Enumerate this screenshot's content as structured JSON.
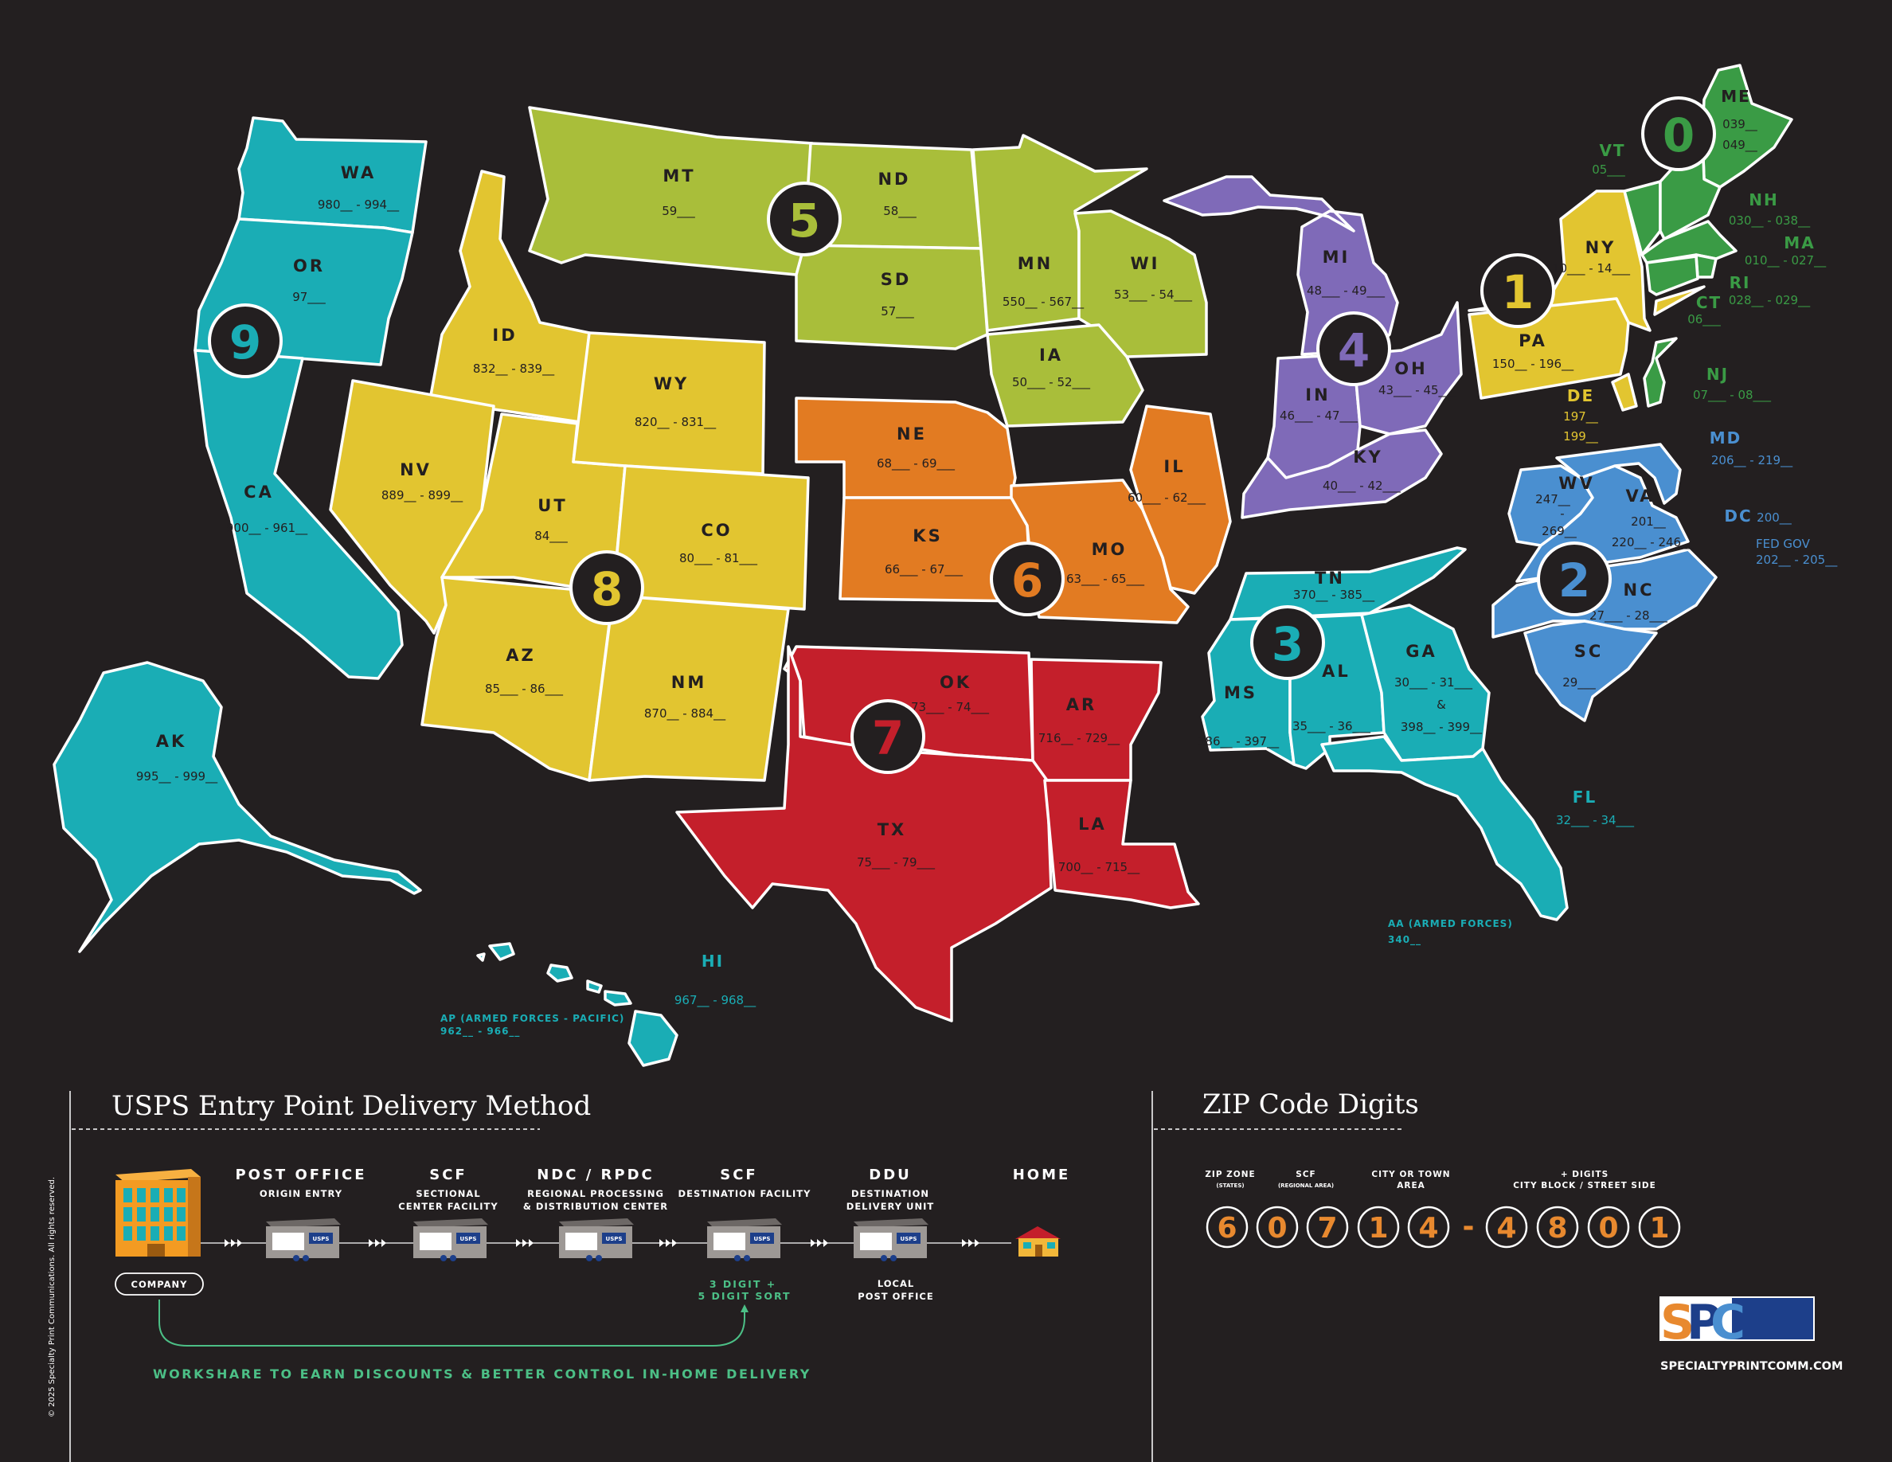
{
  "colors": {
    "background": "#231f20",
    "zone0": "#3a9b45",
    "zone1": "#e2c530",
    "zone2": "#4a8fd0",
    "zone3": "#1aadb5",
    "zone4": "#7f6ab8",
    "zone5": "#a9be3a",
    "zone6": "#e27b22",
    "zone7": "#c41f2b",
    "zone8": "#e2c530",
    "zone9": "#1aadb5",
    "accent_green": "#4cbf86",
    "digit_orange": "#e8892f"
  },
  "zones": {
    "z0": "0",
    "z1": "1",
    "z2": "2",
    "z3": "3",
    "z4": "4",
    "z5": "5",
    "z6": "6",
    "z7": "7",
    "z8": "8",
    "z9": "9"
  },
  "states": {
    "WA": {
      "abbr": "WA",
      "range": "980__ - 994__"
    },
    "OR": {
      "abbr": "OR",
      "range": "97___"
    },
    "CA": {
      "abbr": "CA",
      "range": "900__ - 961__"
    },
    "AK": {
      "abbr": "AK",
      "range": "995__ - 999__"
    },
    "HI": {
      "abbr": "HI",
      "range": "967__ - 968__"
    },
    "ID": {
      "abbr": "ID",
      "range": "832__ - 839__"
    },
    "NV": {
      "abbr": "NV",
      "range": "889__  - 899__"
    },
    "UT": {
      "abbr": "UT",
      "range": "84___"
    },
    "AZ": {
      "abbr": "AZ",
      "range": "85___ - 86___"
    },
    "WY": {
      "abbr": "WY",
      "range": "820__ - 831__"
    },
    "CO": {
      "abbr": "CO",
      "range": "80___ - 81___"
    },
    "NM": {
      "abbr": "NM",
      "range": "870__ - 884__"
    },
    "MT": {
      "abbr": "MT",
      "range": "59___"
    },
    "ND": {
      "abbr": "ND",
      "range": "58___"
    },
    "SD": {
      "abbr": "SD",
      "range": "57___"
    },
    "MN": {
      "abbr": "MN",
      "range": "550__ - 567__"
    },
    "WI": {
      "abbr": "WI",
      "range": "53___ - 54___"
    },
    "IA": {
      "abbr": "IA",
      "range": "50___ - 52___"
    },
    "NE": {
      "abbr": "NE",
      "range": "68___ - 69___"
    },
    "KS": {
      "abbr": "KS",
      "range": "66___ - 67___"
    },
    "MO": {
      "abbr": "MO",
      "range": "63___ - 65___"
    },
    "IL": {
      "abbr": "IL",
      "range": "60___ - 62___"
    },
    "OK": {
      "abbr": "OK",
      "range": "73___ - 74___"
    },
    "AR": {
      "abbr": "AR",
      "range": "716__ - 729__"
    },
    "TX": {
      "abbr": "TX",
      "range": "75___ - 79___"
    },
    "LA": {
      "abbr": "LA",
      "range": "700__ - 715__"
    },
    "MI": {
      "abbr": "MI",
      "range": "48___ - 49___"
    },
    "IN": {
      "abbr": "IN",
      "range": "46___ - 47___"
    },
    "OH": {
      "abbr": "OH",
      "range": "43___ - 45___"
    },
    "KY": {
      "abbr": "KY",
      "range": "40___ - 42___"
    },
    "TN": {
      "abbr": "TN",
      "range": "370__ - 385__"
    },
    "MS": {
      "abbr": "MS",
      "range": "386__ - 397__"
    },
    "AL": {
      "abbr": "AL",
      "range": "35___ - 36___"
    },
    "GA": {
      "abbr": "GA",
      "range1": "30___ - 31___",
      "amp": "&",
      "range2": "398__ - 399__"
    },
    "FL": {
      "abbr": "FL",
      "range": "32___ - 34___"
    },
    "WV": {
      "abbr": "WV",
      "range1": "247__",
      "dash": "-",
      "range2": "269__"
    },
    "VA": {
      "abbr": "VA",
      "range1": "201__",
      "range2": "220__ - 246__"
    },
    "NC": {
      "abbr": "NC",
      "range": "27___ - 28___"
    },
    "SC": {
      "abbr": "SC",
      "range": "29___"
    },
    "NY": {
      "abbr": "NY",
      "range": "10___ - 14___"
    },
    "PA": {
      "abbr": "PA",
      "range": "150__ - 196__"
    },
    "DE": {
      "abbr": "DE",
      "range1": "197__",
      "range2": "199__"
    },
    "MD": {
      "abbr": "MD",
      "range": "206__ - 219__"
    },
    "DC": {
      "abbr": "DC",
      "range": "200__"
    },
    "FEDGOV": {
      "abbr": "FED GOV",
      "range": "202__ - 205__"
    },
    "ME": {
      "abbr": "ME",
      "range1": "039__",
      "range2": "049__"
    },
    "VT": {
      "abbr": "VT",
      "range": "05___"
    },
    "NH": {
      "abbr": "NH",
      "range": "030__ - 038__"
    },
    "MA": {
      "abbr": "MA",
      "range": "010__ - 027__"
    },
    "RI": {
      "abbr": "RI",
      "range": "028__ - 029__"
    },
    "CT": {
      "abbr": "CT",
      "range": "06___"
    },
    "NJ": {
      "abbr": "NJ",
      "range": "07___ - 08___"
    }
  },
  "military": {
    "ap_label": "AP (ARMED FORCES - PACIFIC)",
    "ap_range": "962__ - 966__",
    "aa_label": "AA (ARMED FORCES)",
    "aa_range": "340__"
  },
  "delivery": {
    "title": "USPS Entry Point Delivery Method",
    "company": "COMPANY",
    "steps": [
      {
        "label": "POST OFFICE",
        "sub1": "ORIGIN ENTRY",
        "sub2": ""
      },
      {
        "label": "SCF",
        "sub1": "SECTIONAL",
        "sub2": "CENTER FACILITY"
      },
      {
        "label": "NDC / RPDC",
        "sub1": "REGIONAL PROCESSING",
        "sub2": "& DISTRIBUTION CENTER"
      },
      {
        "label": "SCF",
        "sub1": "DESTINATION FACILITY",
        "sub2": ""
      },
      {
        "label": "DDU",
        "sub1": "DESTINATION",
        "sub2": "DELIVERY UNIT"
      },
      {
        "label": "HOME",
        "sub1": "",
        "sub2": ""
      }
    ],
    "truck_text": "USPS",
    "sort_note1": "3 DIGIT +",
    "sort_note2": "5 DIGIT SORT",
    "local1": "LOCAL",
    "local2": "POST OFFICE",
    "workshare": "WORKSHARE TO EARN DISCOUNTS & BETTER CONTROL IN-HOME DELIVERY"
  },
  "zip": {
    "title": "ZIP Code Digits",
    "zone_label": "ZIP ZONE",
    "zone_sub": "(STATES)",
    "scf_label": "SCF",
    "scf_sub": "(REGIONAL AREA)",
    "city_label1": "CITY OR TOWN",
    "city_label2": "AREA",
    "plus_label1": "+ DIGITS",
    "plus_label2": "CITY BLOCK / STREET SIDE",
    "digits": [
      "6",
      "0",
      "7",
      "1",
      "4",
      "4",
      "8",
      "0",
      "1"
    ],
    "dash": "-"
  },
  "brand": {
    "logo_s": "S",
    "logo_p": "P",
    "logo_c": "C",
    "url": "SPECIALTYPRINTCOMM.COM",
    "copyright": "© 2025 Specialty Print Communications. All rights reserved."
  }
}
